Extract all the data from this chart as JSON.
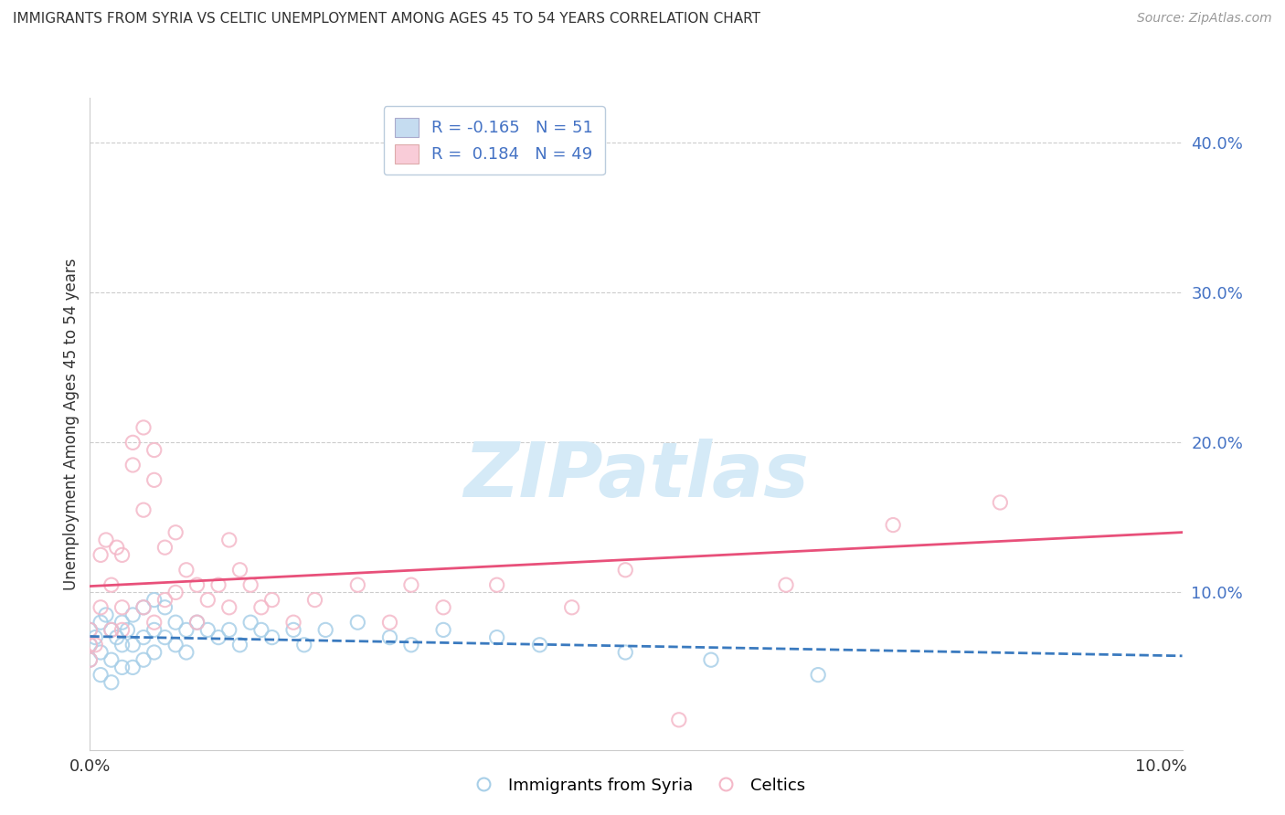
{
  "title": "IMMIGRANTS FROM SYRIA VS CELTIC UNEMPLOYMENT AMONG AGES 45 TO 54 YEARS CORRELATION CHART",
  "source": "Source: ZipAtlas.com",
  "ylabel": "Unemployment Among Ages 45 to 54 years",
  "xlim": [
    0.0,
    0.102
  ],
  "ylim": [
    -0.005,
    0.43
  ],
  "ytick_vals": [
    0.1,
    0.2,
    0.3,
    0.4
  ],
  "ytick_labels": [
    "10.0%",
    "20.0%",
    "30.0%",
    "40.0%"
  ],
  "xtick_vals": [
    0.0,
    0.1
  ],
  "xtick_labels": [
    "0.0%",
    "10.0%"
  ],
  "legend_labels": [
    "Immigrants from Syria",
    "Celtics"
  ],
  "blue_color": "#a8cfe8",
  "pink_color": "#f4b8c8",
  "blue_line_color": "#3a7abf",
  "pink_line_color": "#e8507a",
  "R_blue": -0.165,
  "N_blue": 51,
  "R_pink": 0.184,
  "N_pink": 49,
  "watermark_text": "ZIPatlas",
  "watermark_color": "#d5eaf7",
  "background_color": "#ffffff",
  "grid_color": "#cccccc",
  "blue_scatter_x": [
    0.0,
    0.0,
    0.0,
    0.0005,
    0.001,
    0.001,
    0.001,
    0.0015,
    0.002,
    0.002,
    0.002,
    0.0025,
    0.003,
    0.003,
    0.003,
    0.0035,
    0.004,
    0.004,
    0.004,
    0.005,
    0.005,
    0.005,
    0.006,
    0.006,
    0.006,
    0.007,
    0.007,
    0.008,
    0.008,
    0.009,
    0.009,
    0.01,
    0.011,
    0.012,
    0.013,
    0.014,
    0.015,
    0.016,
    0.017,
    0.019,
    0.02,
    0.022,
    0.025,
    0.028,
    0.03,
    0.033,
    0.038,
    0.042,
    0.05,
    0.058,
    0.068
  ],
  "blue_scatter_y": [
    0.065,
    0.075,
    0.055,
    0.07,
    0.08,
    0.06,
    0.045,
    0.085,
    0.075,
    0.055,
    0.04,
    0.07,
    0.08,
    0.065,
    0.05,
    0.075,
    0.085,
    0.065,
    0.05,
    0.09,
    0.07,
    0.055,
    0.095,
    0.075,
    0.06,
    0.09,
    0.07,
    0.08,
    0.065,
    0.075,
    0.06,
    0.08,
    0.075,
    0.07,
    0.075,
    0.065,
    0.08,
    0.075,
    0.07,
    0.075,
    0.065,
    0.075,
    0.08,
    0.07,
    0.065,
    0.075,
    0.07,
    0.065,
    0.06,
    0.055,
    0.045
  ],
  "pink_scatter_x": [
    0.0,
    0.0,
    0.0,
    0.0005,
    0.001,
    0.001,
    0.0015,
    0.002,
    0.002,
    0.0025,
    0.003,
    0.003,
    0.003,
    0.004,
    0.004,
    0.005,
    0.005,
    0.005,
    0.006,
    0.006,
    0.006,
    0.007,
    0.007,
    0.008,
    0.008,
    0.009,
    0.01,
    0.01,
    0.011,
    0.012,
    0.013,
    0.013,
    0.014,
    0.015,
    0.016,
    0.017,
    0.019,
    0.021,
    0.025,
    0.028,
    0.03,
    0.033,
    0.038,
    0.045,
    0.05,
    0.055,
    0.065,
    0.075,
    0.085
  ],
  "pink_scatter_y": [
    0.065,
    0.075,
    0.055,
    0.065,
    0.125,
    0.09,
    0.135,
    0.105,
    0.075,
    0.13,
    0.125,
    0.09,
    0.075,
    0.2,
    0.185,
    0.21,
    0.155,
    0.09,
    0.195,
    0.175,
    0.08,
    0.13,
    0.095,
    0.14,
    0.1,
    0.115,
    0.105,
    0.08,
    0.095,
    0.105,
    0.135,
    0.09,
    0.115,
    0.105,
    0.09,
    0.095,
    0.08,
    0.095,
    0.105,
    0.08,
    0.105,
    0.09,
    0.105,
    0.09,
    0.115,
    0.015,
    0.105,
    0.145,
    0.16
  ]
}
